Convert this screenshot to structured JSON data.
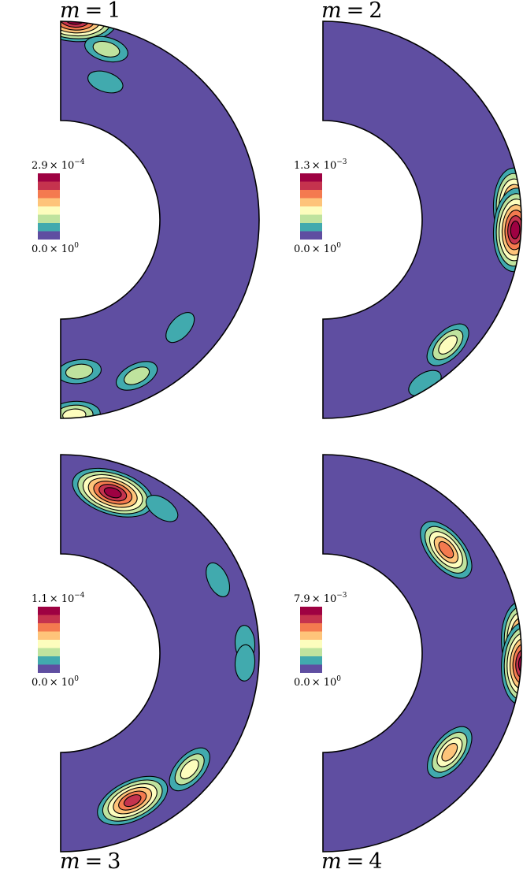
{
  "chart_data": [
    {
      "type": "heatmap",
      "title": "m = 1",
      "title_var": "m",
      "title_num": "1",
      "colorbar": {
        "max_mant": "2.9",
        "max_exp": "−4",
        "min_mant": "0.0",
        "min_exp": "0"
      },
      "value_range": [
        0,
        0.00029
      ],
      "levels": 8,
      "blobs": [
        {
          "r": 0.95,
          "theta_deg": 86,
          "level": 7
        },
        {
          "r": 0.8,
          "theta_deg": 75,
          "level": 2
        },
        {
          "r": 0.6,
          "theta_deg": 72,
          "level": 1
        },
        {
          "r": 0.65,
          "theta_deg": -83,
          "level": 2
        },
        {
          "r": 0.78,
          "theta_deg": -64,
          "level": 2
        },
        {
          "r": 0.7,
          "theta_deg": -42,
          "level": 1
        },
        {
          "r": 0.92,
          "theta_deg": -86,
          "level": 3
        }
      ]
    },
    {
      "type": "heatmap",
      "title": "m = 2",
      "title_var": "m",
      "title_num": "2",
      "colorbar": {
        "max_mant": "1.3",
        "max_exp": "−3",
        "min_mant": "0.0",
        "min_exp": "0"
      },
      "value_range": [
        0,
        0.0013
      ],
      "levels": 8,
      "blobs": [
        {
          "r": 0.9,
          "theta_deg": 3,
          "level": 7
        },
        {
          "r": 0.9,
          "theta_deg": -3,
          "level": 7
        },
        {
          "r": 0.8,
          "theta_deg": -45,
          "level": 3
        },
        {
          "r": 0.9,
          "theta_deg": -58,
          "level": 1
        }
      ]
    },
    {
      "type": "heatmap",
      "title": "m = 3",
      "title_var": "m",
      "title_num": "3",
      "colorbar": {
        "max_mant": "1.1",
        "max_exp": "−4",
        "min_mant": "0.0",
        "min_exp": "0"
      },
      "value_range": [
        0,
        0.00011
      ],
      "levels": 8,
      "blobs": [
        {
          "r": 0.75,
          "theta_deg": 72,
          "level": 7
        },
        {
          "r": 0.8,
          "theta_deg": 55,
          "level": 1
        },
        {
          "r": 0.78,
          "theta_deg": 25,
          "level": 1
        },
        {
          "r": 0.85,
          "theta_deg": 3,
          "level": 1
        },
        {
          "r": 0.85,
          "theta_deg": -3,
          "level": 1
        },
        {
          "r": 0.72,
          "theta_deg": -64,
          "level": 6
        },
        {
          "r": 0.78,
          "theta_deg": -42,
          "level": 3
        }
      ]
    },
    {
      "type": "heatmap",
      "title": "m = 4",
      "title_var": "m",
      "title_num": "4",
      "colorbar": {
        "max_mant": "7.9",
        "max_exp": "−3",
        "min_mant": "0.0",
        "min_exp": "0"
      },
      "value_range": [
        0,
        0.0079
      ],
      "levels": 8,
      "blobs": [
        {
          "r": 0.7,
          "theta_deg": 40,
          "level": 5
        },
        {
          "r": 0.95,
          "theta_deg": 3,
          "level": 7
        },
        {
          "r": 0.95,
          "theta_deg": -3,
          "level": 7
        },
        {
          "r": 0.7,
          "theta_deg": -38,
          "level": 4
        }
      ]
    }
  ],
  "colors": {
    "background": "#5f4ea1",
    "levels": [
      "#5f4ea1",
      "#41aaae",
      "#bfe39e",
      "#fdfdbd",
      "#fec47a",
      "#f47a4f",
      "#c5334e",
      "#9e0142"
    ],
    "outline": "#000000"
  }
}
